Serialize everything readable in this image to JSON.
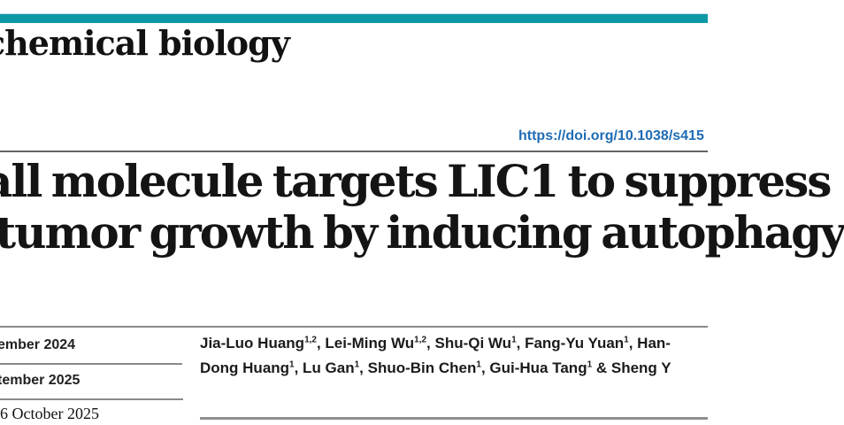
{
  "brand": {
    "teal_color": "#0d98a6",
    "journal_name": "chemical biology"
  },
  "doi": {
    "url_text": "https://doi.org/10.1038/s415"
  },
  "title": {
    "line1": "all molecule targets LIC1 to suppress",
    "line2": "tumor growth by inducing autophagy"
  },
  "dates": {
    "received": "ember 2024",
    "accepted": "tember 2025",
    "published": "6 October 2025"
  },
  "authors": {
    "line1": [
      {
        "text": "Jia-Luo Huang",
        "sup": "1,2"
      },
      {
        "text": ", Lei-Ming Wu",
        "sup": "1,2"
      },
      {
        "text": ", Shu-Qi Wu",
        "sup": "1"
      },
      {
        "text": ", Fang-Yu Yuan",
        "sup": "1"
      },
      {
        "text": ", Han-",
        "sup": ""
      }
    ],
    "line2": [
      {
        "text": "Dong Huang",
        "sup": "1"
      },
      {
        "text": ", Lu Gan",
        "sup": "1"
      },
      {
        "text": ", Shuo-Bin Chen",
        "sup": "1"
      },
      {
        "text": ", Gui-Hua Tang",
        "sup": "1"
      },
      {
        "text": " & Sheng Y",
        "sup": ""
      }
    ]
  },
  "colors": {
    "rule_gray": "#8a8a8a",
    "link_blue": "#1f6cb4",
    "text_black": "#141414"
  }
}
